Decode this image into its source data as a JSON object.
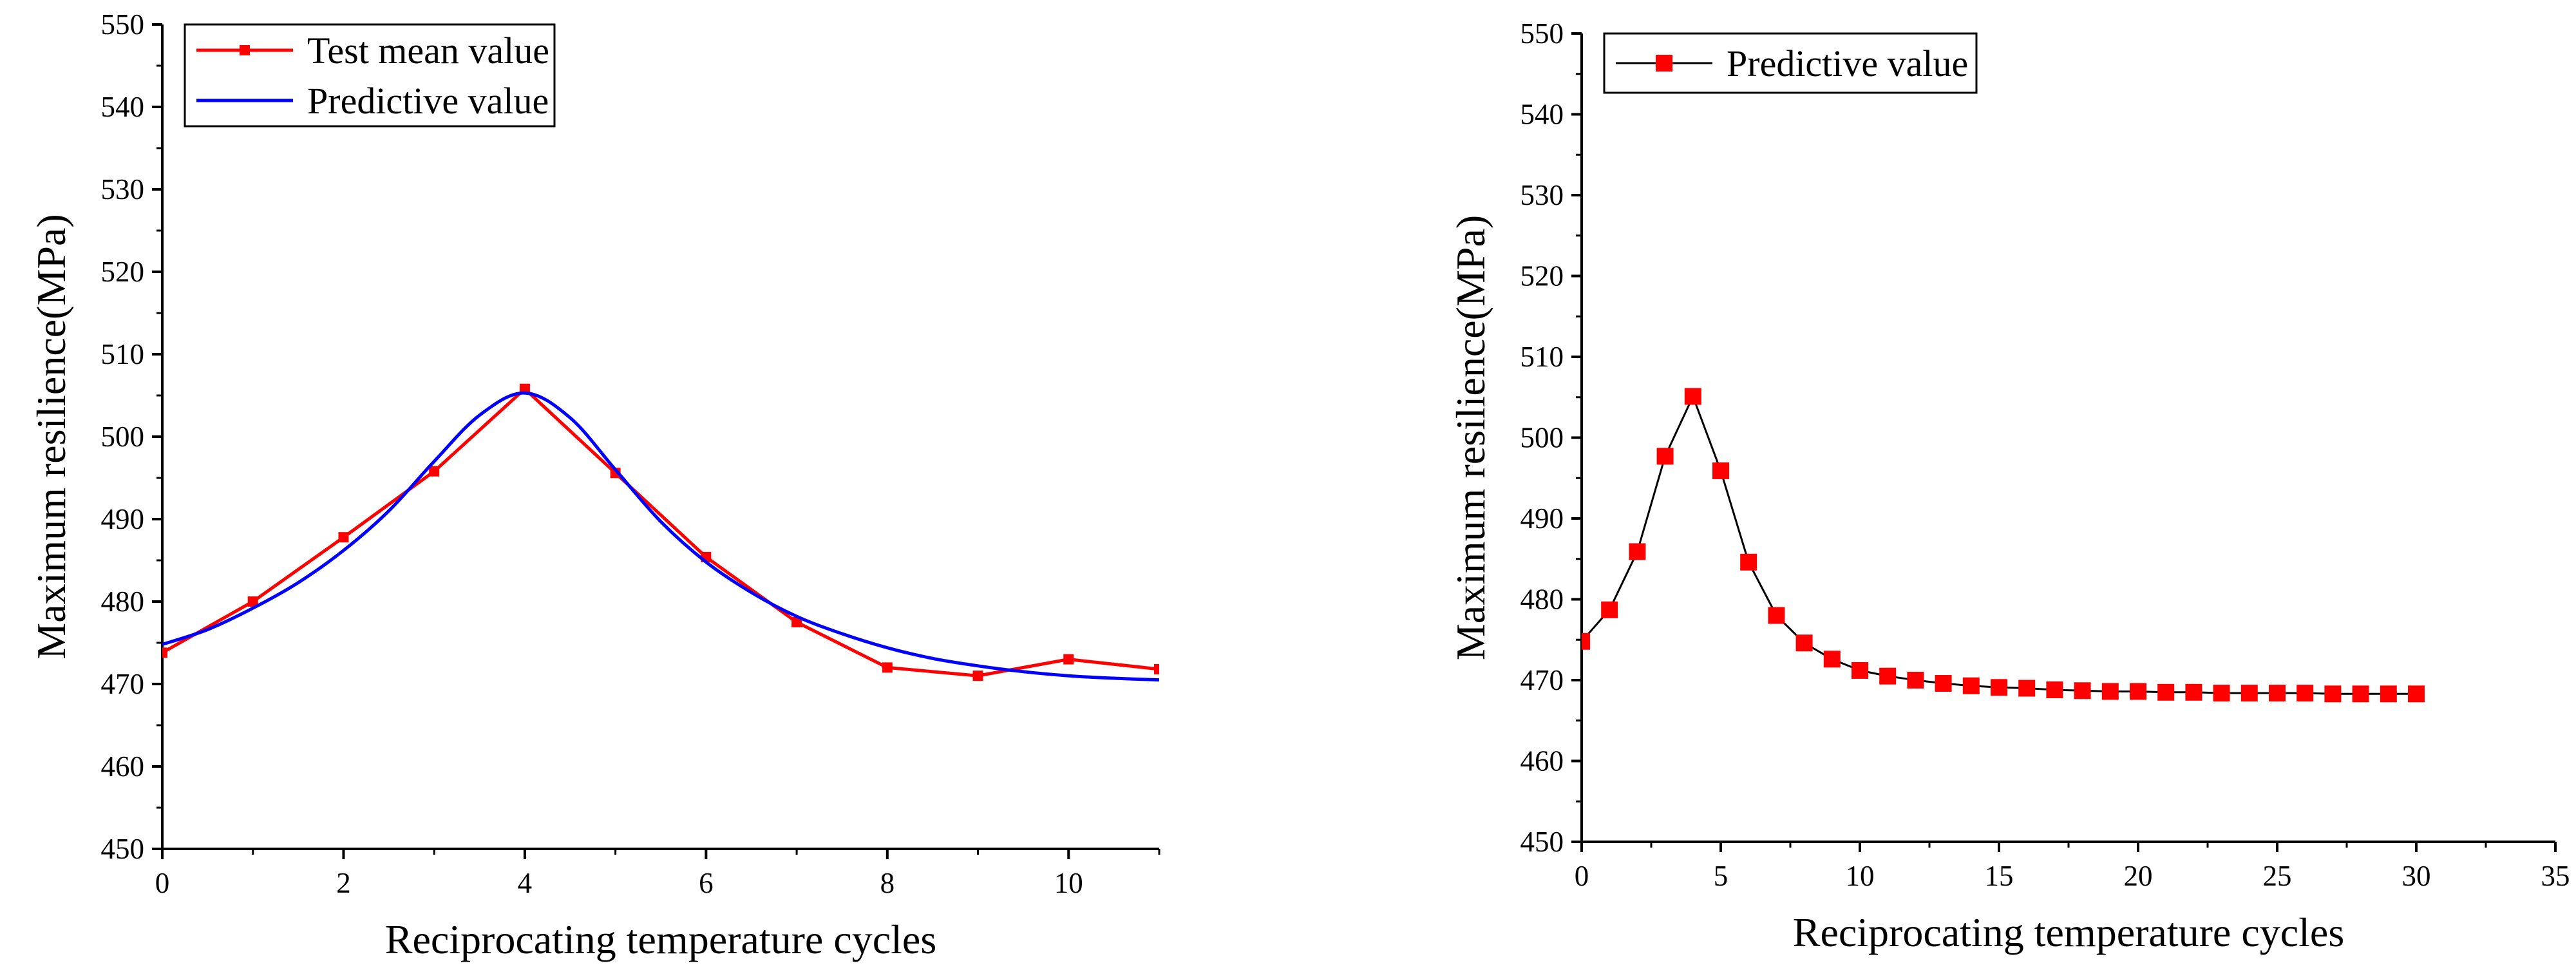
{
  "chart_data": [
    {
      "type": "line",
      "xlabel": "Reciprocating temperature cycles",
      "ylabel": "Maximum resilience(MPa)",
      "xlim": [
        0,
        11
      ],
      "ylim": [
        450,
        550
      ],
      "xticks": [
        0,
        2,
        4,
        6,
        8,
        10
      ],
      "yticks": [
        450,
        460,
        470,
        480,
        490,
        500,
        510,
        520,
        530,
        540,
        550
      ],
      "grid": false,
      "legend": "top-left",
      "series": [
        {
          "name": "Test mean value",
          "color": "#ff0000",
          "marker": "square",
          "x": [
            0,
            1,
            2,
            3,
            4,
            5,
            6,
            7,
            8,
            9,
            10,
            11
          ],
          "y": [
            473.8,
            480.0,
            487.8,
            495.8,
            505.8,
            495.6,
            485.4,
            477.5,
            472.0,
            471.0,
            473.0,
            471.8
          ]
        },
        {
          "name": "Predictive value",
          "color": "#0000ff",
          "marker": "none",
          "smooth": true,
          "x": [
            0,
            0.5,
            1,
            1.5,
            2,
            2.5,
            3,
            3.5,
            4,
            4.5,
            5,
            5.5,
            6,
            6.5,
            7,
            7.5,
            8,
            8.5,
            9,
            9.5,
            10,
            10.5,
            11
          ],
          "y": [
            474.8,
            476.6,
            479.2,
            482.3,
            486.2,
            491.0,
            497.0,
            502.6,
            505.3,
            502.3,
            496.0,
            489.7,
            484.8,
            481.1,
            478.2,
            476.1,
            474.4,
            473.1,
            472.2,
            471.5,
            471.0,
            470.7,
            470.5
          ]
        }
      ]
    },
    {
      "type": "line",
      "xlabel": "Reciprocating temperature cycles",
      "ylabel": "Maximum resilience(MPa)",
      "xlim": [
        0,
        35
      ],
      "ylim": [
        450,
        550
      ],
      "xticks": [
        0,
        5,
        10,
        15,
        20,
        25,
        30,
        35
      ],
      "yticks": [
        450,
        460,
        470,
        480,
        490,
        500,
        510,
        520,
        530,
        540,
        550
      ],
      "grid": false,
      "legend": "top-left",
      "series": [
        {
          "name": "Predictive value",
          "color": "#ff0000",
          "line_color": "#000000",
          "marker": "square",
          "x": [
            0,
            1,
            2,
            3,
            4,
            5,
            6,
            7,
            8,
            9,
            10,
            11,
            12,
            13,
            14,
            15,
            16,
            17,
            18,
            19,
            20,
            21,
            22,
            23,
            24,
            25,
            26,
            27,
            28,
            29,
            30
          ],
          "y": [
            474.8,
            478.7,
            485.9,
            497.7,
            505.1,
            495.9,
            484.6,
            478.0,
            474.6,
            472.6,
            471.2,
            470.5,
            470.0,
            469.6,
            469.3,
            469.1,
            469.0,
            468.8,
            468.7,
            468.6,
            468.6,
            468.5,
            468.5,
            468.4,
            468.4,
            468.4,
            468.4,
            468.3,
            468.3,
            468.3,
            468.3
          ]
        }
      ]
    }
  ]
}
